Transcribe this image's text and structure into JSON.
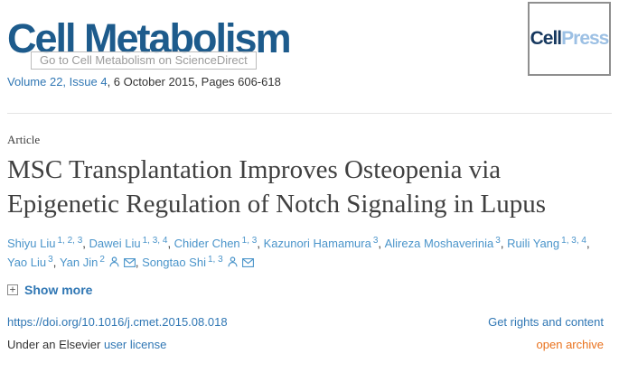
{
  "journal": {
    "name": "Cell Metabolism",
    "tooltip": "Go to Cell Metabolism on ScienceDirect",
    "volume_link": "Volume 22, Issue 4",
    "issue_suffix": ", 6 October 2015, Pages 606-618",
    "publisher": {
      "cell": "Cell",
      "press": "Press"
    }
  },
  "article": {
    "type_label": "Article",
    "title": "MSC Transplantation Improves Osteopenia via Epigenetic Regulation of Notch Signaling in Lupus",
    "authors": [
      {
        "name": "Shiyu Liu",
        "sup": "1, 2, 3",
        "icons": []
      },
      {
        "name": "Dawei Liu",
        "sup": "1, 3, 4",
        "icons": []
      },
      {
        "name": "Chider Chen",
        "sup": "1, 3",
        "icons": []
      },
      {
        "name": "Kazunori Hamamura",
        "sup": "3",
        "icons": []
      },
      {
        "name": "Alireza Moshaverinia",
        "sup": "3",
        "icons": []
      },
      {
        "name": "Ruili Yang",
        "sup": "1, 3, 4",
        "icons": []
      },
      {
        "name": "Yao Liu",
        "sup": "3",
        "icons": []
      },
      {
        "name": "Yan Jin",
        "sup": "2",
        "icons": [
          "person",
          "envelope"
        ]
      },
      {
        "name": "Songtao Shi",
        "sup": "1, 3",
        "icons": [
          "person",
          "envelope"
        ]
      }
    ],
    "show_more_label": "Show more",
    "doi": "https://doi.org/10.1016/j.cmet.2015.08.018",
    "rights_link": "Get rights and content",
    "license_prefix": "Under an Elsevier ",
    "license_link": "user license",
    "open_archive": "open archive"
  },
  "icons": {
    "expand": "plus-box",
    "author_contact": [
      "person-silhouette",
      "envelope"
    ]
  },
  "colors": {
    "logo_navy": "#1d5b8c",
    "link_blue": "#3077b4",
    "author_blue": "#4a94ca",
    "open_archive_orange": "#e9711c",
    "text_dark": "#333333",
    "tooltip_gray": "#9b9b9b",
    "cellpress_dark": "#16385f",
    "cellpress_light": "#9cc0e4"
  }
}
